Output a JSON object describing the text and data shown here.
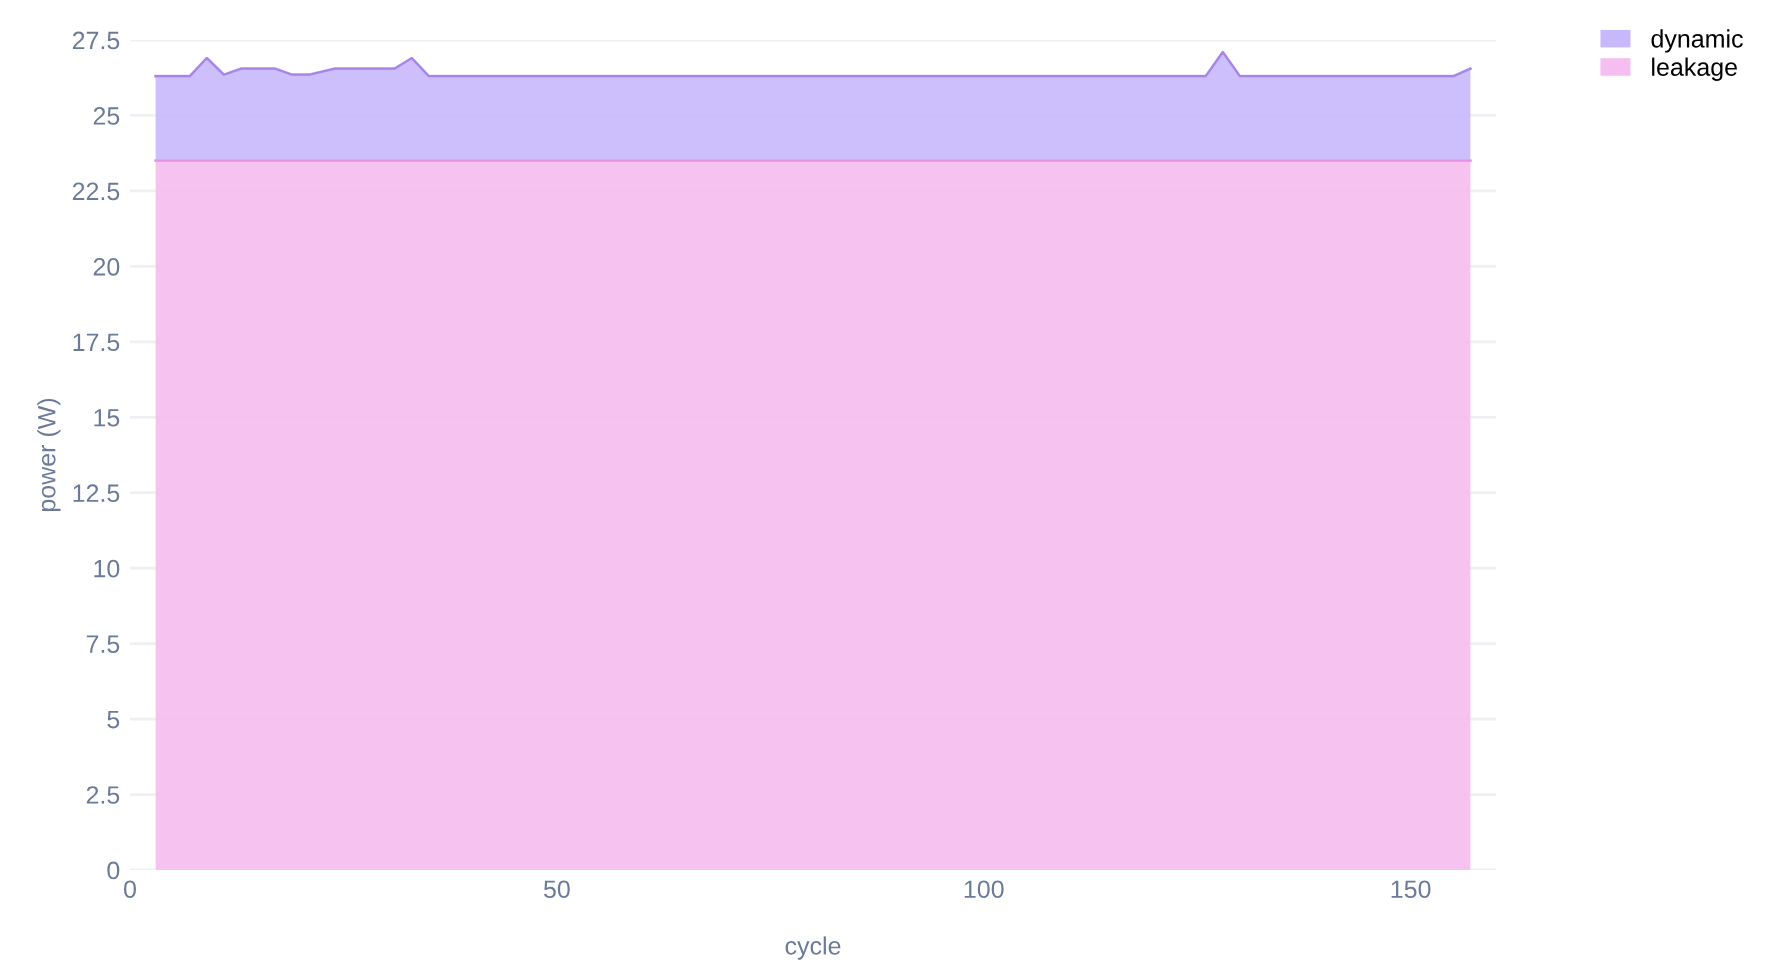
{
  "chart_data": {
    "type": "area",
    "stacked": true,
    "xlabel": "cycle",
    "ylabel": "power (W)",
    "x": [
      3,
      7,
      9,
      11,
      13,
      17,
      19,
      21,
      24,
      31,
      33,
      35,
      126,
      128,
      130,
      155,
      157
    ],
    "series": [
      {
        "name": "leakage",
        "color": "#f5bdf0",
        "values": [
          23.5,
          23.5,
          23.5,
          23.5,
          23.5,
          23.5,
          23.5,
          23.5,
          23.5,
          23.5,
          23.5,
          23.5,
          23.5,
          23.5,
          23.5,
          23.5,
          23.5
        ]
      },
      {
        "name": "dynamic",
        "color": "#c7b8fb",
        "values": [
          2.8,
          2.8,
          3.4,
          2.85,
          3.05,
          3.05,
          2.85,
          2.85,
          3.05,
          3.05,
          3.4,
          2.8,
          2.8,
          3.6,
          2.8,
          2.8,
          3.05
        ]
      }
    ],
    "xlim": [
      0,
      160
    ],
    "ylim": [
      0,
      27.5
    ],
    "xticks": [
      0,
      50,
      100,
      150
    ],
    "yticks": [
      0,
      2.5,
      5,
      7.5,
      10,
      12.5,
      15,
      17.5,
      20,
      22.5,
      25,
      27.5
    ],
    "grid": "y",
    "legend": "top right"
  }
}
